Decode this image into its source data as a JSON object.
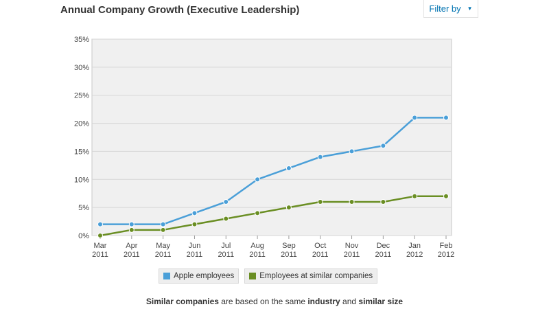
{
  "header": {
    "title": "Annual Company Growth (Executive Leadership)",
    "filter_label": "Filter by",
    "filter_caret": "▼"
  },
  "colors": {
    "series_blue": "#4a9fd8",
    "series_green": "#6a8e23",
    "plot_bg": "#f0f0f0",
    "grid": "#d6d6d6",
    "link": "#0073b1"
  },
  "footnote": {
    "part1": "Similar companies",
    "part2": " are based on the same ",
    "part3": "industry",
    "part4": " and ",
    "part5": "similar size"
  },
  "chart_data": {
    "type": "line",
    "title": "Annual Company Growth (Executive Leadership)",
    "categories": [
      [
        "Mar",
        "2011"
      ],
      [
        "Apr",
        "2011"
      ],
      [
        "May",
        "2011"
      ],
      [
        "Jun",
        "2011"
      ],
      [
        "Jul",
        "2011"
      ],
      [
        "Aug",
        "2011"
      ],
      [
        "Sep",
        "2011"
      ],
      [
        "Oct",
        "2011"
      ],
      [
        "Nov",
        "2011"
      ],
      [
        "Dec",
        "2011"
      ],
      [
        "Jan",
        "2012"
      ],
      [
        "Feb",
        "2012"
      ]
    ],
    "series": [
      {
        "name": "Apple employees",
        "color": "#4a9fd8",
        "values": [
          2,
          2,
          2,
          4,
          6,
          10,
          12,
          14,
          15,
          16,
          21,
          21
        ]
      },
      {
        "name": "Employees at similar companies",
        "color": "#6a8e23",
        "values": [
          0,
          1,
          1,
          2,
          3,
          4,
          5,
          6,
          6,
          6,
          7,
          7
        ]
      }
    ],
    "ylim": [
      0,
      35
    ],
    "yticks": [
      0,
      5,
      10,
      15,
      20,
      25,
      30,
      35
    ],
    "ytick_labels": [
      "0%",
      "5%",
      "10%",
      "15%",
      "20%",
      "25%",
      "30%",
      "35%"
    ],
    "grid": true,
    "xlabel": "",
    "ylabel": "",
    "legend_position": "bottom"
  }
}
